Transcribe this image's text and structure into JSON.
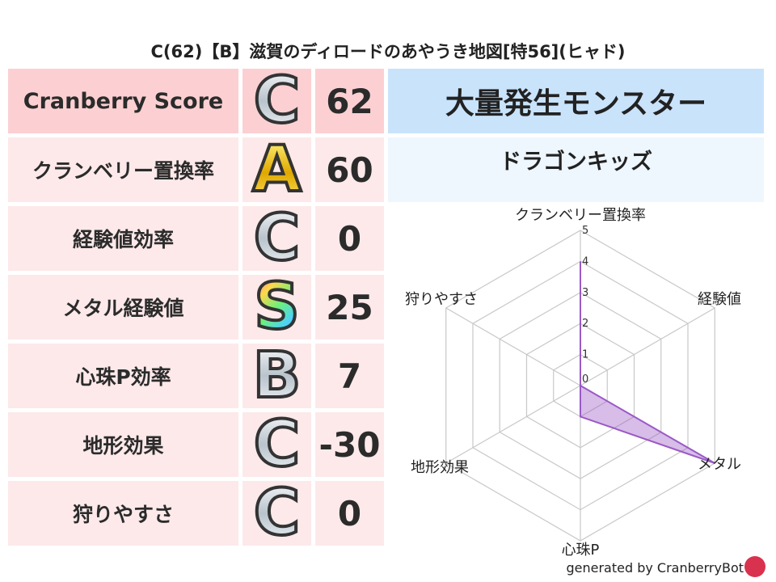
{
  "title": "C(62)【B】滋賀のディロードのあやうき地図[特56](ヒャド)",
  "rows": [
    {
      "label": "Cranberry Score",
      "grade": "C",
      "value": "62"
    },
    {
      "label": "クランベリー置換率",
      "grade": "A",
      "value": "60"
    },
    {
      "label": "経験値効率",
      "grade": "C",
      "value": "0"
    },
    {
      "label": "メタル経験値",
      "grade": "S",
      "value": "25"
    },
    {
      "label": "心珠P効率",
      "grade": "B",
      "value": "7"
    },
    {
      "label": "地形効果",
      "grade": "C",
      "value": "-30"
    },
    {
      "label": "狩りやすさ",
      "grade": "C",
      "value": "0"
    }
  ],
  "monster_header": "大量発生モンスター",
  "monster_name": "ドラゴンキッズ",
  "footer": "generated by CranberryBot",
  "colors": {
    "header_row": "#fcd0d2",
    "row": "#fde9ea",
    "monster_header": "#c9e3fb",
    "monster_name": "#eef6fe",
    "radar": "#9b59c6"
  },
  "chart_data": {
    "type": "radar",
    "axes": [
      "クランベリー置換率",
      "経験値",
      "メタル",
      "心珠P",
      "地形効果",
      "狩りやすさ"
    ],
    "values": [
      4,
      0,
      5,
      1,
      0,
      0
    ],
    "range": [
      0,
      5
    ],
    "ticks": [
      "0",
      "1",
      "2",
      "3",
      "4",
      "5"
    ]
  }
}
